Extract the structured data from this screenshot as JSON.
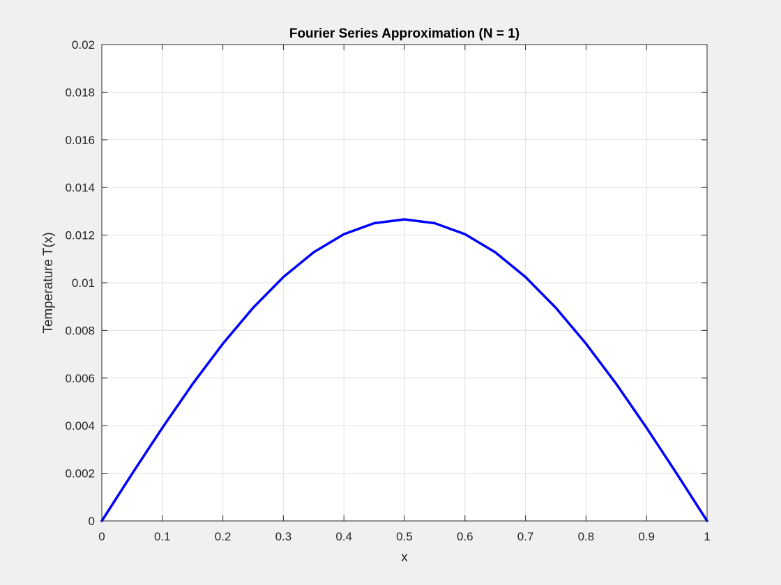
{
  "chart_data": {
    "type": "line",
    "title": "Fourier Series Approximation (N = 1)",
    "xlabel": "x",
    "ylabel": "Temperature T(x)",
    "xlim": [
      0,
      1
    ],
    "ylim": [
      0,
      0.02
    ],
    "xticks": [
      "0",
      "0.1",
      "0.2",
      "0.3",
      "0.4",
      "0.5",
      "0.6",
      "0.7",
      "0.8",
      "0.9",
      "1"
    ],
    "yticks": [
      "0",
      "0.002",
      "0.004",
      "0.006",
      "0.008",
      "0.01",
      "0.012",
      "0.014",
      "0.016",
      "0.018",
      "0.02"
    ],
    "grid": true,
    "series": [
      {
        "color": "#0000ff",
        "x": [
          0,
          0.05,
          0.1,
          0.15,
          0.2,
          0.25,
          0.3,
          0.35,
          0.4,
          0.45,
          0.5,
          0.55,
          0.6,
          0.65,
          0.7,
          0.75,
          0.8,
          0.85,
          0.9,
          0.95,
          1
        ],
        "y": [
          0,
          0.00198,
          0.00391,
          0.00575,
          0.00744,
          0.00895,
          0.01024,
          0.01128,
          0.01204,
          0.0125,
          0.01266,
          0.0125,
          0.01204,
          0.01128,
          0.01024,
          0.00895,
          0.00744,
          0.00575,
          0.00391,
          0.00198,
          0
        ]
      }
    ]
  }
}
